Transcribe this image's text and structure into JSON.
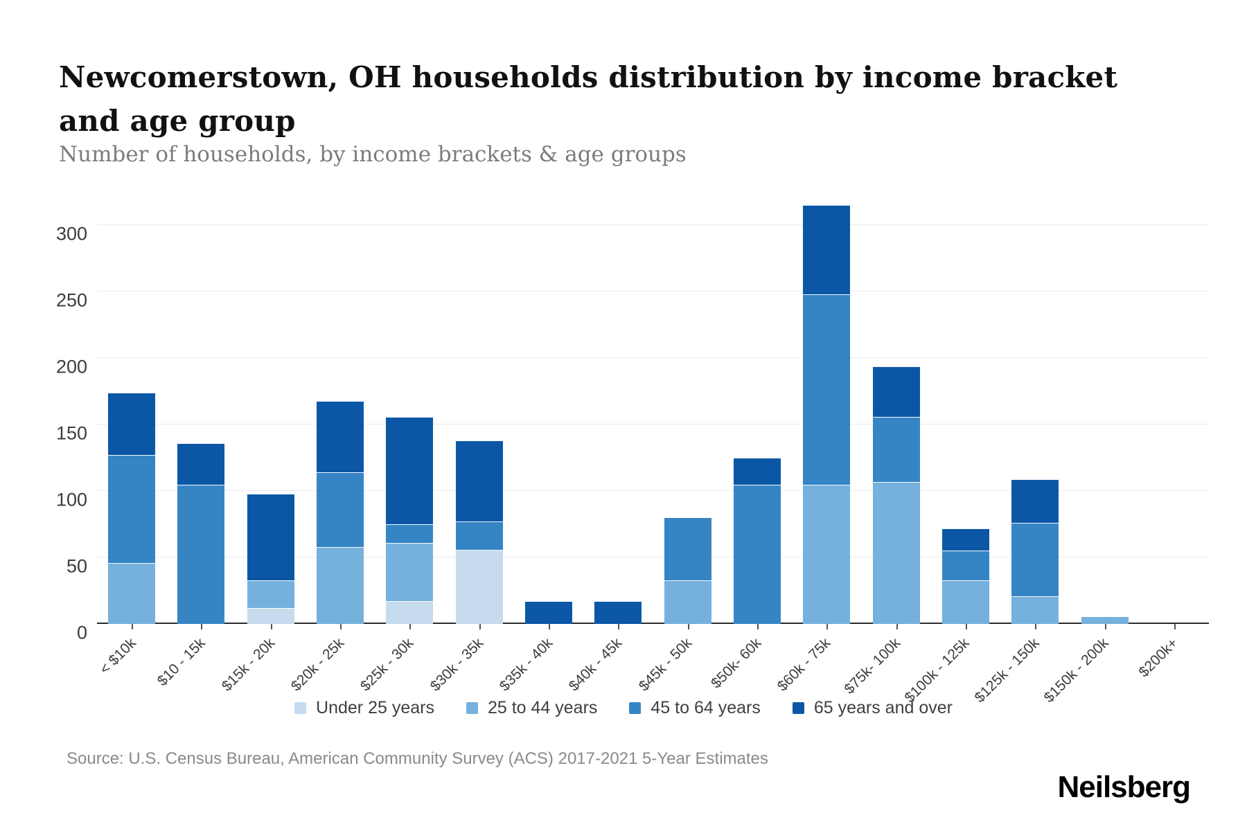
{
  "header": {
    "title": "Newcomerstown, OH households distribution by income bracket and age group",
    "subtitle": "Number of households, by income brackets & age groups"
  },
  "chart_data": {
    "type": "bar",
    "stacked": true,
    "title": "Newcomerstown, OH households distribution by income bracket and age group",
    "xlabel": "",
    "ylabel": "",
    "ylim": [
      0,
      334
    ],
    "y_ticks": [
      0,
      50,
      100,
      150,
      200,
      250,
      300
    ],
    "grid": true,
    "legend_position": "bottom",
    "categories": [
      "< $10k",
      "$10 - 15k",
      "$15k - 20k",
      "$20k - 25k",
      "$25k - 30k",
      "$30k - 35k",
      "$35k - 40k",
      "$40k - 45k",
      "$45k - 50k",
      "$50k- 60k",
      "$60k - 75k",
      "$75k- 100k",
      "$100k - 125k",
      "$125k - 150k",
      "$150k - 200k",
      "$200k+"
    ],
    "series": [
      {
        "name": "Under 25 years",
        "color": "#c6dbed",
        "values": [
          0,
          0,
          12,
          0,
          17,
          56,
          0,
          0,
          0,
          0,
          0,
          0,
          0,
          0,
          0,
          0
        ]
      },
      {
        "name": "25 to 44 years",
        "color": "#75b1dc",
        "values": [
          46,
          0,
          21,
          58,
          44,
          0,
          0,
          0,
          33,
          0,
          105,
          107,
          33,
          21,
          6,
          0
        ]
      },
      {
        "name": "45 to 64 years",
        "color": "#3585c5",
        "values": [
          81,
          105,
          0,
          56,
          14,
          21,
          0,
          0,
          47,
          105,
          143,
          49,
          22,
          55,
          0,
          0
        ]
      },
      {
        "name": "65 years and over",
        "color": "#0b57a6",
        "values": [
          47,
          31,
          65,
          54,
          81,
          61,
          17,
          17,
          0,
          20,
          67,
          38,
          17,
          33,
          0,
          0
        ]
      }
    ]
  },
  "footer": {
    "source": "Source: U.S. Census Bureau, American Community Survey (ACS) 2017-2021 5-Year Estimates",
    "brand": "Neilsberg"
  }
}
